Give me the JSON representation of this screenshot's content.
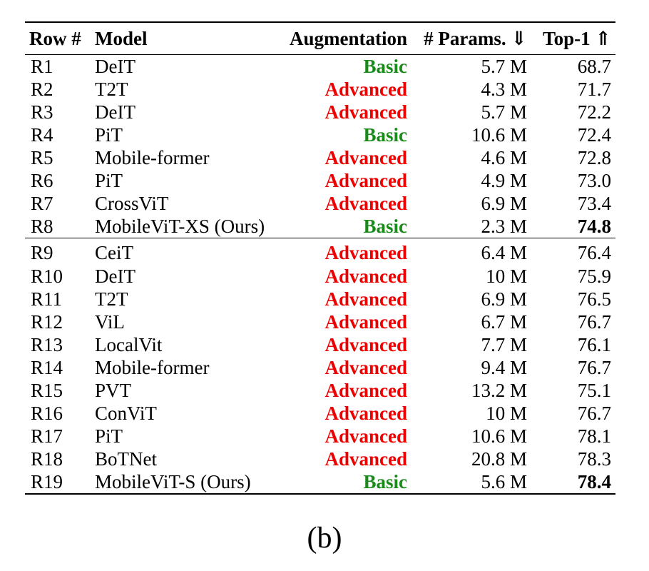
{
  "table": {
    "headers": {
      "row": "Row #",
      "model": "Model",
      "augmentation": "Augmentation",
      "params": "# Params. ⇓",
      "top1": "Top-1 ⇑"
    },
    "groups": [
      {
        "rows": [
          {
            "row": "R1",
            "model": "DeIT",
            "augmentation": "Basic",
            "params": "5.7 M",
            "top1": "68.7",
            "best": false
          },
          {
            "row": "R2",
            "model": "T2T",
            "augmentation": "Advanced",
            "params": "4.3 M",
            "top1": "71.7",
            "best": false
          },
          {
            "row": "R3",
            "model": "DeIT",
            "augmentation": "Advanced",
            "params": "5.7 M",
            "top1": "72.2",
            "best": false
          },
          {
            "row": "R4",
            "model": "PiT",
            "augmentation": "Basic",
            "params": "10.6 M",
            "top1": "72.4",
            "best": false
          },
          {
            "row": "R5",
            "model": "Mobile-former",
            "augmentation": "Advanced",
            "params": "4.6 M",
            "top1": "72.8",
            "best": false
          },
          {
            "row": "R6",
            "model": "PiT",
            "augmentation": "Advanced",
            "params": "4.9 M",
            "top1": "73.0",
            "best": false
          },
          {
            "row": "R7",
            "model": "CrossViT",
            "augmentation": "Advanced",
            "params": "6.9 M",
            "top1": "73.4",
            "best": false
          },
          {
            "row": "R8",
            "model": "MobileViT-XS (Ours)",
            "augmentation": "Basic",
            "params": "2.3 M",
            "top1": "74.8",
            "best": true
          }
        ]
      },
      {
        "rows": [
          {
            "row": "R9",
            "model": "CeiT",
            "augmentation": "Advanced",
            "params": "6.4 M",
            "top1": "76.4",
            "best": false
          },
          {
            "row": "R10",
            "model": "DeIT",
            "augmentation": "Advanced",
            "params": "10 M",
            "top1": "75.9",
            "best": false
          },
          {
            "row": "R11",
            "model": "T2T",
            "augmentation": "Advanced",
            "params": "6.9 M",
            "top1": "76.5",
            "best": false
          },
          {
            "row": "R12",
            "model": "ViL",
            "augmentation": "Advanced",
            "params": "6.7 M",
            "top1": "76.7",
            "best": false
          },
          {
            "row": "R13",
            "model": "LocalVit",
            "augmentation": "Advanced",
            "params": "7.7 M",
            "top1": "76.1",
            "best": false
          },
          {
            "row": "R14",
            "model": "Mobile-former",
            "augmentation": "Advanced",
            "params": "9.4 M",
            "top1": "76.7",
            "best": false
          },
          {
            "row": "R15",
            "model": "PVT",
            "augmentation": "Advanced",
            "params": "13.2 M",
            "top1": "75.1",
            "best": false
          },
          {
            "row": "R16",
            "model": "ConViT",
            "augmentation": "Advanced",
            "params": "10 M",
            "top1": "76.7",
            "best": false
          },
          {
            "row": "R17",
            "model": "PiT",
            "augmentation": "Advanced",
            "params": "10.6 M",
            "top1": "78.1",
            "best": false
          },
          {
            "row": "R18",
            "model": "BoTNet",
            "augmentation": "Advanced",
            "params": "20.8 M",
            "top1": "78.3",
            "best": false
          },
          {
            "row": "R19",
            "model": "MobileViT-S (Ours)",
            "augmentation": "Basic",
            "params": "5.6 M",
            "top1": "78.4",
            "best": true
          }
        ]
      }
    ],
    "colors": {
      "basic": "#1a8a1a",
      "advanced": "#ee0000"
    }
  },
  "caption": "(b)"
}
